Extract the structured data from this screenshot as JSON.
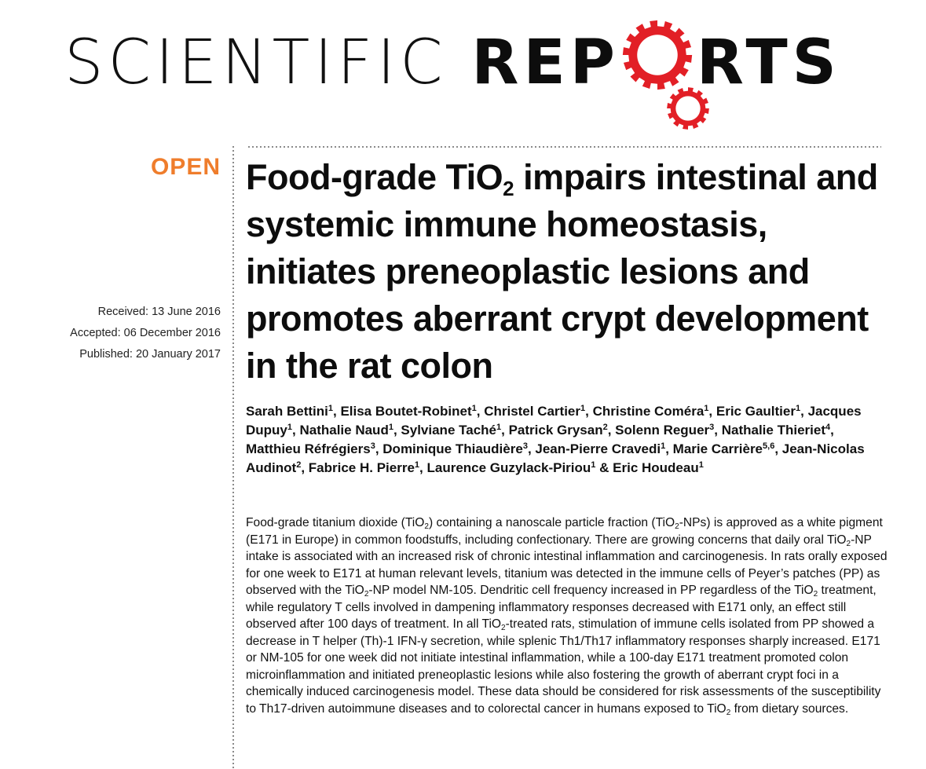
{
  "journal": {
    "name_light": "SCIENTIFIC",
    "name_bold_1": "REP",
    "name_bold_2": "RTS",
    "brand_color": "#e21f26"
  },
  "sidebar": {
    "open_label": "OPEN",
    "open_color": "#ef7d2c",
    "dates": [
      "Received: 13 June 2016",
      "Accepted: 06 December 2016",
      "Published: 20 January 2017"
    ]
  },
  "article": {
    "title_1": "Food-grade TiO",
    "title_sub": "2",
    "title_2": " impairs intestinal and systemic immune homeostasis, initiates preneoplastic lesions and promotes aberrant crypt development in the rat colon",
    "authors": [
      {
        "name": "Sarah Bettini",
        "aff": "1",
        "sep": ", "
      },
      {
        "name": "Elisa Boutet-Robinet",
        "aff": "1",
        "sep": ", "
      },
      {
        "name": "Christel Cartier",
        "aff": "1",
        "sep": ", "
      },
      {
        "name": "Christine Coméra",
        "aff": "1",
        "sep": ", "
      },
      {
        "name": "Eric Gaultier",
        "aff": "1",
        "sep": ", "
      },
      {
        "name": "Jacques Dupuy",
        "aff": "1",
        "sep": ", "
      },
      {
        "name": "Nathalie Naud",
        "aff": "1",
        "sep": ", "
      },
      {
        "name": "Sylviane Taché",
        "aff": "1",
        "sep": ", "
      },
      {
        "name": "Patrick Grysan",
        "aff": "2",
        "sep": ", "
      },
      {
        "name": "Solenn Reguer",
        "aff": "3",
        "sep": ", "
      },
      {
        "name": "Nathalie Thieriet",
        "aff": "4",
        "sep": ", "
      },
      {
        "name": "Matthieu Réfrégiers",
        "aff": "3",
        "sep": ", "
      },
      {
        "name": "Dominique Thiaudière",
        "aff": "3",
        "sep": ", "
      },
      {
        "name": "Jean-Pierre Cravedi",
        "aff": "1",
        "sep": ", "
      },
      {
        "name": "Marie Carrière",
        "aff": "5,6",
        "sep": ", "
      },
      {
        "name": "Jean-Nicolas Audinot",
        "aff": "2",
        "sep": ", "
      },
      {
        "name": "Fabrice H. Pierre",
        "aff": "1",
        "sep": ", "
      },
      {
        "name": "Laurence Guzylack-Piriou",
        "aff": "1",
        "sep": " & "
      },
      {
        "name": "Eric Houdeau",
        "aff": "1",
        "sep": ""
      }
    ],
    "abstract_segments": [
      {
        "t": "Food-grade titanium dioxide (TiO"
      },
      {
        "t": "2",
        "sub": true
      },
      {
        "t": ") containing a nanoscale particle fraction (TiO"
      },
      {
        "t": "2",
        "sub": true
      },
      {
        "t": "-NPs) is approved as a white pigment (E171 in Europe) in common foodstuffs, including confectionary. There are growing concerns that daily oral TiO"
      },
      {
        "t": "2",
        "sub": true
      },
      {
        "t": "-NP intake is associated with an increased risk of chronic intestinal inflammation and carcinogenesis. In rats orally exposed for one week to E171 at human relevant levels, titanium was detected in the immune cells of Peyer’s patches (PP) as observed with the TiO"
      },
      {
        "t": "2",
        "sub": true
      },
      {
        "t": "-NP model NM-105. Dendritic cell frequency increased in PP regardless of the TiO"
      },
      {
        "t": "2",
        "sub": true
      },
      {
        "t": " treatment, while regulatory T cells involved in dampening inflammatory responses decreased with E171 only, an effect still observed after 100 days of treatment. In all TiO"
      },
      {
        "t": "2",
        "sub": true
      },
      {
        "t": "-treated rats, stimulation of immune cells isolated from PP showed a decrease in T helper (Th)-1 IFN-γ secretion, while splenic Th1/Th17 inflammatory responses sharply increased. E171 or NM-105 for one week did not initiate intestinal inflammation, while a 100-day E171 treatment promoted colon microinflammation and initiated preneoplastic lesions while also fostering the growth of aberrant crypt foci in a chemically induced carcinogenesis model. These data should be considered for risk assessments of the susceptibility to Th17-driven autoimmune diseases and to colorectal cancer in humans exposed to TiO"
      },
      {
        "t": "2",
        "sub": true
      },
      {
        "t": " from dietary sources."
      }
    ]
  }
}
